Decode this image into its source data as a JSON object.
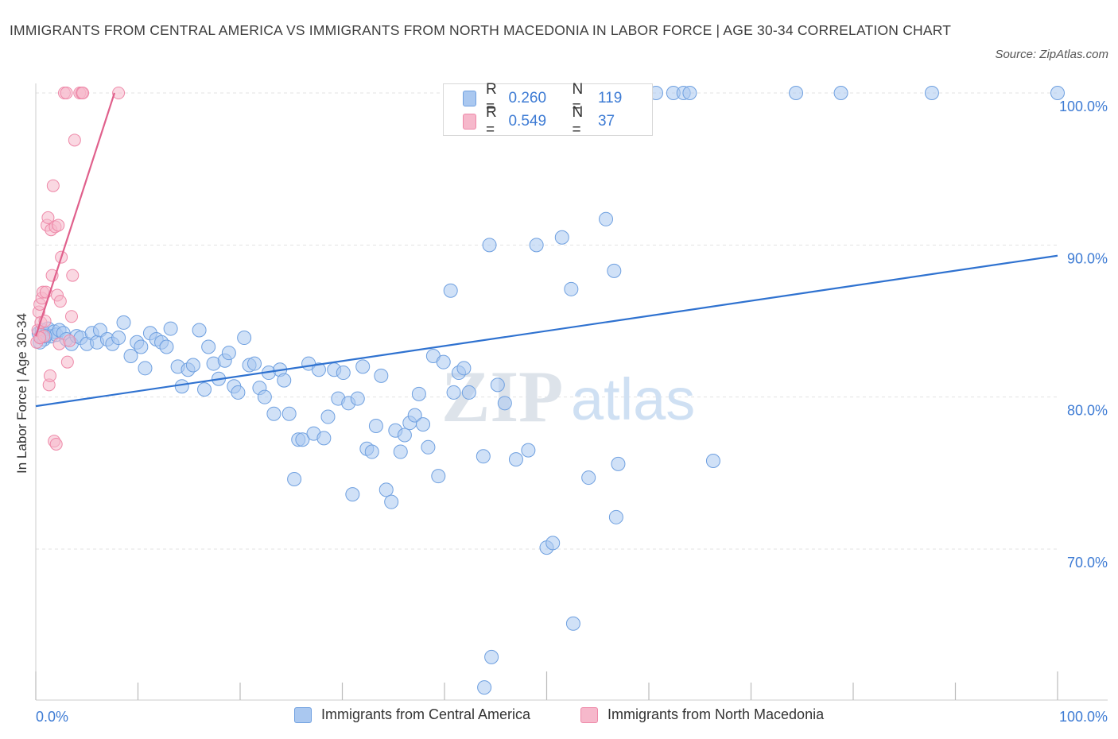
{
  "title": "IMMIGRANTS FROM CENTRAL AMERICA VS IMMIGRANTS FROM NORTH MACEDONIA IN LABOR FORCE | AGE 30-34 CORRELATION CHART",
  "source": "Source: ZipAtlas.com",
  "watermark": {
    "zip": "ZIP",
    "atlas": "atlas"
  },
  "legend": {
    "rows": [
      {
        "r_label": "R =",
        "r_value": "0.260",
        "n_label": "N =",
        "n_value": "119",
        "color": "#aac8f0"
      },
      {
        "r_label": "R =",
        "r_value": "0.549",
        "n_label": "N =",
        "n_value": "37",
        "color": "#f6b8cb"
      }
    ]
  },
  "chart_data": {
    "type": "scatter",
    "title": "IMMIGRANTS FROM CENTRAL AMERICA VS IMMIGRANTS FROM NORTH MACEDONIA IN LABOR FORCE | AGE 30-34 CORRELATION CHART",
    "xlabel": "",
    "ylabel": "In Labor Force | Age 30-34",
    "xlim": [
      0,
      100
    ],
    "ylim": [
      60,
      100
    ],
    "x_tick_labels": [
      "0.0%",
      "100.0%"
    ],
    "y_tick_labels": [
      "100.0%",
      "90.0%",
      "80.0%",
      "70.0%"
    ],
    "y_ticks": [
      100,
      90,
      80,
      70
    ],
    "grid": true,
    "legend_placement": "top-center",
    "series": [
      {
        "name": "Immigrants from Central America",
        "color": "#6fa0e0",
        "fill": "#aac8f0",
        "trend": {
          "x": [
            0,
            100
          ],
          "y": [
            79.4,
            89.3
          ],
          "color": "#2f72d0"
        },
        "points": [
          [
            0.3,
            84.2
          ],
          [
            0.5,
            84.0
          ],
          [
            0.6,
            84.4
          ],
          [
            0.8,
            83.8
          ],
          [
            1.0,
            84.1
          ],
          [
            1.2,
            84.5
          ],
          [
            1.5,
            84.0
          ],
          [
            1.8,
            84.3
          ],
          [
            2.0,
            84.1
          ],
          [
            2.3,
            84.4
          ],
          [
            2.7,
            84.2
          ],
          [
            3.0,
            83.8
          ],
          [
            3.5,
            83.5
          ],
          [
            4.0,
            84.0
          ],
          [
            4.4,
            83.9
          ],
          [
            5.0,
            83.5
          ],
          [
            5.5,
            84.2
          ],
          [
            6.0,
            83.6
          ],
          [
            6.3,
            84.4
          ],
          [
            7.0,
            83.8
          ],
          [
            7.5,
            83.5
          ],
          [
            8.1,
            83.9
          ],
          [
            8.6,
            84.9
          ],
          [
            9.3,
            82.7
          ],
          [
            9.9,
            83.6
          ],
          [
            10.3,
            83.3
          ],
          [
            10.7,
            81.9
          ],
          [
            11.2,
            84.2
          ],
          [
            11.8,
            83.8
          ],
          [
            12.3,
            83.6
          ],
          [
            12.8,
            83.3
          ],
          [
            13.2,
            84.5
          ],
          [
            13.9,
            82.0
          ],
          [
            14.3,
            80.7
          ],
          [
            14.9,
            81.8
          ],
          [
            15.4,
            82.1
          ],
          [
            16.0,
            84.4
          ],
          [
            16.5,
            80.5
          ],
          [
            16.9,
            83.3
          ],
          [
            17.4,
            82.2
          ],
          [
            17.9,
            81.2
          ],
          [
            18.5,
            82.4
          ],
          [
            18.9,
            82.9
          ],
          [
            19.4,
            80.7
          ],
          [
            19.8,
            80.3
          ],
          [
            20.4,
            83.9
          ],
          [
            20.9,
            82.1
          ],
          [
            21.4,
            82.2
          ],
          [
            21.9,
            80.6
          ],
          [
            22.4,
            80.0
          ],
          [
            22.8,
            81.6
          ],
          [
            23.3,
            78.9
          ],
          [
            23.9,
            81.8
          ],
          [
            24.3,
            81.1
          ],
          [
            24.8,
            78.9
          ],
          [
            25.3,
            74.6
          ],
          [
            25.7,
            77.2
          ],
          [
            26.1,
            77.2
          ],
          [
            26.7,
            82.2
          ],
          [
            27.2,
            77.6
          ],
          [
            27.7,
            81.8
          ],
          [
            28.2,
            77.3
          ],
          [
            28.6,
            78.7
          ],
          [
            29.2,
            81.8
          ],
          [
            29.6,
            79.9
          ],
          [
            30.1,
            81.6
          ],
          [
            30.6,
            79.6
          ],
          [
            31.0,
            73.6
          ],
          [
            31.5,
            79.9
          ],
          [
            32.0,
            82.0
          ],
          [
            32.4,
            76.6
          ],
          [
            32.9,
            76.4
          ],
          [
            33.3,
            78.1
          ],
          [
            33.8,
            81.4
          ],
          [
            34.3,
            73.9
          ],
          [
            34.8,
            73.1
          ],
          [
            35.2,
            77.8
          ],
          [
            35.7,
            76.4
          ],
          [
            36.1,
            77.5
          ],
          [
            36.6,
            78.3
          ],
          [
            37.1,
            78.8
          ],
          [
            37.5,
            80.2
          ],
          [
            37.9,
            78.2
          ],
          [
            38.4,
            76.7
          ],
          [
            38.9,
            82.7
          ],
          [
            39.4,
            74.8
          ],
          [
            39.9,
            82.3
          ],
          [
            40.6,
            87.0
          ],
          [
            40.9,
            80.3
          ],
          [
            41.4,
            81.6
          ],
          [
            41.9,
            81.9
          ],
          [
            42.4,
            80.3
          ],
          [
            43.8,
            76.1
          ],
          [
            44.4,
            90.0
          ],
          [
            45.2,
            80.8
          ],
          [
            45.9,
            79.6
          ],
          [
            47.0,
            75.9
          ],
          [
            48.2,
            76.5
          ],
          [
            49.0,
            90.0
          ],
          [
            50.0,
            70.1
          ],
          [
            50.6,
            70.4
          ],
          [
            51.5,
            90.5
          ],
          [
            52.4,
            87.1
          ],
          [
            52.6,
            65.1
          ],
          [
            54.1,
            74.7
          ],
          [
            55.8,
            91.7
          ],
          [
            56.6,
            88.3
          ],
          [
            56.8,
            72.1
          ],
          [
            57.0,
            75.6
          ],
          [
            58.8,
            100
          ],
          [
            60.7,
            100
          ],
          [
            62.4,
            100
          ],
          [
            63.4,
            100
          ],
          [
            64.0,
            100
          ],
          [
            66.3,
            75.8
          ],
          [
            74.4,
            100
          ],
          [
            78.8,
            100
          ],
          [
            87.7,
            100
          ],
          [
            100,
            100
          ],
          [
            47.0,
            100
          ],
          [
            50.5,
            100
          ],
          [
            44.6,
            62.9
          ],
          [
            43.9,
            60.9
          ],
          [
            0.4,
            83.6
          ],
          [
            0.9,
            84.0
          ]
        ]
      },
      {
        "name": "Immigrants from North Macedonia",
        "color": "#ee88a8",
        "fill": "#f6b8cb",
        "trend": {
          "x": [
            0.0,
            7.7
          ],
          "y": [
            84.0,
            100.0
          ],
          "color": "#e0608c"
        },
        "points": [
          [
            0.1,
            83.6
          ],
          [
            0.2,
            84.4
          ],
          [
            0.3,
            85.6
          ],
          [
            0.4,
            86.1
          ],
          [
            0.5,
            84.9
          ],
          [
            0.6,
            86.5
          ],
          [
            0.7,
            86.9
          ],
          [
            0.8,
            84.0
          ],
          [
            0.9,
            85.0
          ],
          [
            1.0,
            86.9
          ],
          [
            1.1,
            91.3
          ],
          [
            1.2,
            91.8
          ],
          [
            1.3,
            80.8
          ],
          [
            1.4,
            81.4
          ],
          [
            1.5,
            91.0
          ],
          [
            1.6,
            88.0
          ],
          [
            1.7,
            93.9
          ],
          [
            1.8,
            77.1
          ],
          [
            1.9,
            91.2
          ],
          [
            2.0,
            76.9
          ],
          [
            2.1,
            86.7
          ],
          [
            2.2,
            91.3
          ],
          [
            2.3,
            83.5
          ],
          [
            2.4,
            86.3
          ],
          [
            2.5,
            89.2
          ],
          [
            2.8,
            100
          ],
          [
            3.0,
            100
          ],
          [
            3.1,
            82.3
          ],
          [
            3.3,
            83.7
          ],
          [
            3.5,
            85.3
          ],
          [
            3.6,
            88.0
          ],
          [
            3.8,
            96.9
          ],
          [
            4.3,
            100
          ],
          [
            4.5,
            100
          ],
          [
            4.6,
            100
          ],
          [
            8.1,
            100
          ],
          [
            0.4,
            83.9
          ]
        ]
      }
    ]
  },
  "bottom_legend": [
    {
      "label": "Immigrants from Central America",
      "color": "#aac8f0"
    },
    {
      "label": "Immigrants from North Macedonia",
      "color": "#f6b8cb"
    }
  ]
}
